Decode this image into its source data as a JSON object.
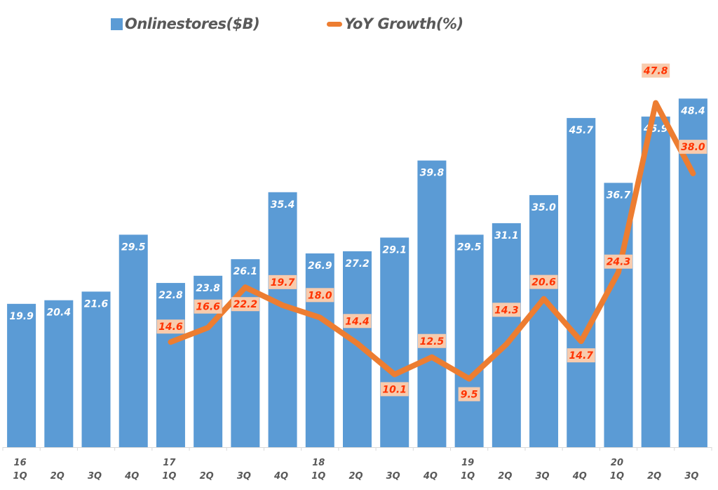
{
  "legend": {
    "bar_label": "Onlinestores($B)",
    "line_label": "YoY Growth(%)"
  },
  "colors": {
    "bar": "#5b9bd5",
    "line": "#ed7d31",
    "label_box": "#f8cbad",
    "label_text": "#ff3300"
  },
  "chart_data": {
    "type": "bar+line",
    "title": "",
    "xlabel": "",
    "ylabel": "",
    "ylim": [
      0,
      62
    ],
    "grid": false,
    "legend_position": "top",
    "categories": [
      "1Q",
      "2Q",
      "3Q",
      "4Q",
      "1Q",
      "2Q",
      "3Q",
      "4Q",
      "1Q",
      "2Q",
      "3Q",
      "4Q",
      "1Q",
      "2Q",
      "3Q",
      "4Q",
      "1Q",
      "2Q",
      "3Q"
    ],
    "year_labels": [
      "16",
      "",
      "",
      "",
      "17",
      "",
      "",
      "",
      "18",
      "",
      "",
      "",
      "19",
      "",
      "",
      "",
      "20",
      "",
      ""
    ],
    "series": [
      {
        "name": "Onlinestores($B)",
        "type": "bar",
        "values": [
          19.9,
          20.4,
          21.6,
          29.5,
          22.8,
          23.8,
          26.1,
          35.4,
          26.9,
          27.2,
          29.1,
          39.8,
          29.5,
          31.1,
          35.0,
          45.7,
          36.7,
          45.9,
          48.4
        ],
        "labels": [
          "19.9",
          "20.4",
          "21.6",
          "29.5",
          "22.8",
          "23.8",
          "26.1",
          "35.4",
          "26.9",
          "27.2",
          "29.1",
          "39.8",
          "29.5",
          "31.1",
          "35.0",
          "45.7",
          "36.7",
          "45.9",
          "48.4"
        ]
      },
      {
        "name": "YoY Growth(%)",
        "type": "line",
        "values": [
          null,
          null,
          null,
          null,
          14.6,
          16.6,
          22.2,
          19.7,
          18.0,
          14.4,
          10.1,
          12.5,
          9.5,
          14.3,
          20.6,
          14.7,
          24.3,
          47.8,
          38.0
        ],
        "labels": [
          "",
          "",
          "",
          "",
          "14.6",
          "16.6",
          "22.2",
          "19.7",
          "18.0",
          "14.4",
          "10.1",
          "12.5",
          "9.5",
          "14.3",
          "20.6",
          "14.7",
          "24.3",
          "47.8",
          "38.0"
        ]
      }
    ]
  }
}
